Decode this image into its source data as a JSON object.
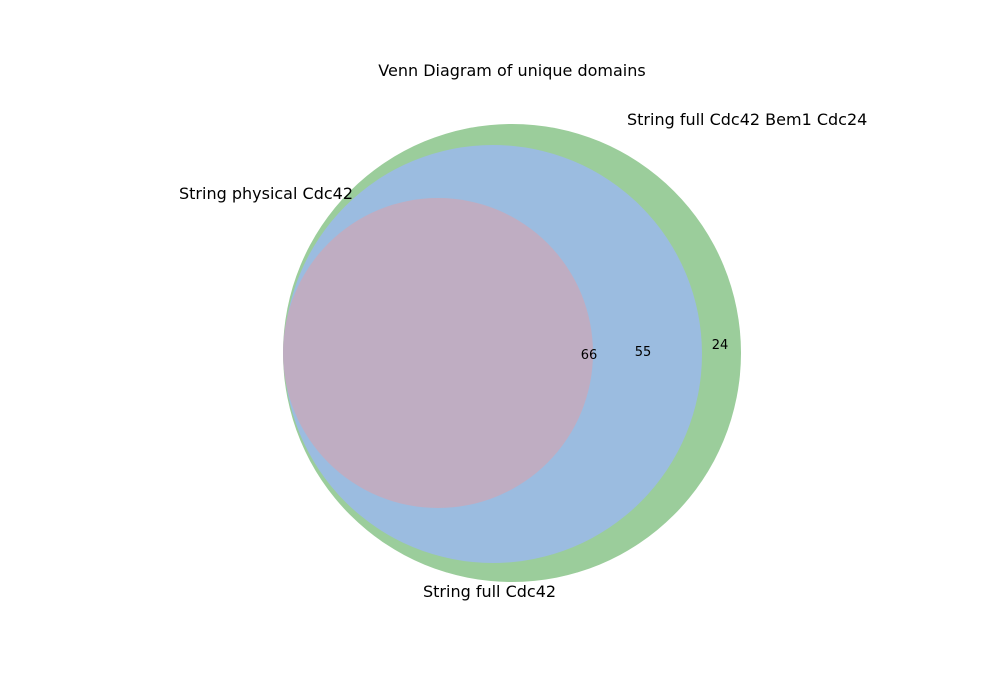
{
  "chart_data": {
    "type": "venn",
    "title": "Venn Diagram of unique domains",
    "sets": [
      {
        "name": "String full Cdc42 Bem1 Cdc24",
        "color": "#9bcd9b"
      },
      {
        "name": "String full Cdc42",
        "color": "#9bbce0"
      },
      {
        "name": "String physical Cdc42",
        "color": "#bfadc2"
      }
    ],
    "regions": [
      {
        "sets": [
          "String full Cdc42 Bem1 Cdc24"
        ],
        "value": "24"
      },
      {
        "sets": [
          "String full Cdc42 Bem1 Cdc24",
          "String full Cdc42"
        ],
        "value": "55"
      },
      {
        "sets": [
          "String full Cdc42 Bem1 Cdc24",
          "String full Cdc42",
          "String physical Cdc42"
        ],
        "value": "66"
      }
    ]
  }
}
